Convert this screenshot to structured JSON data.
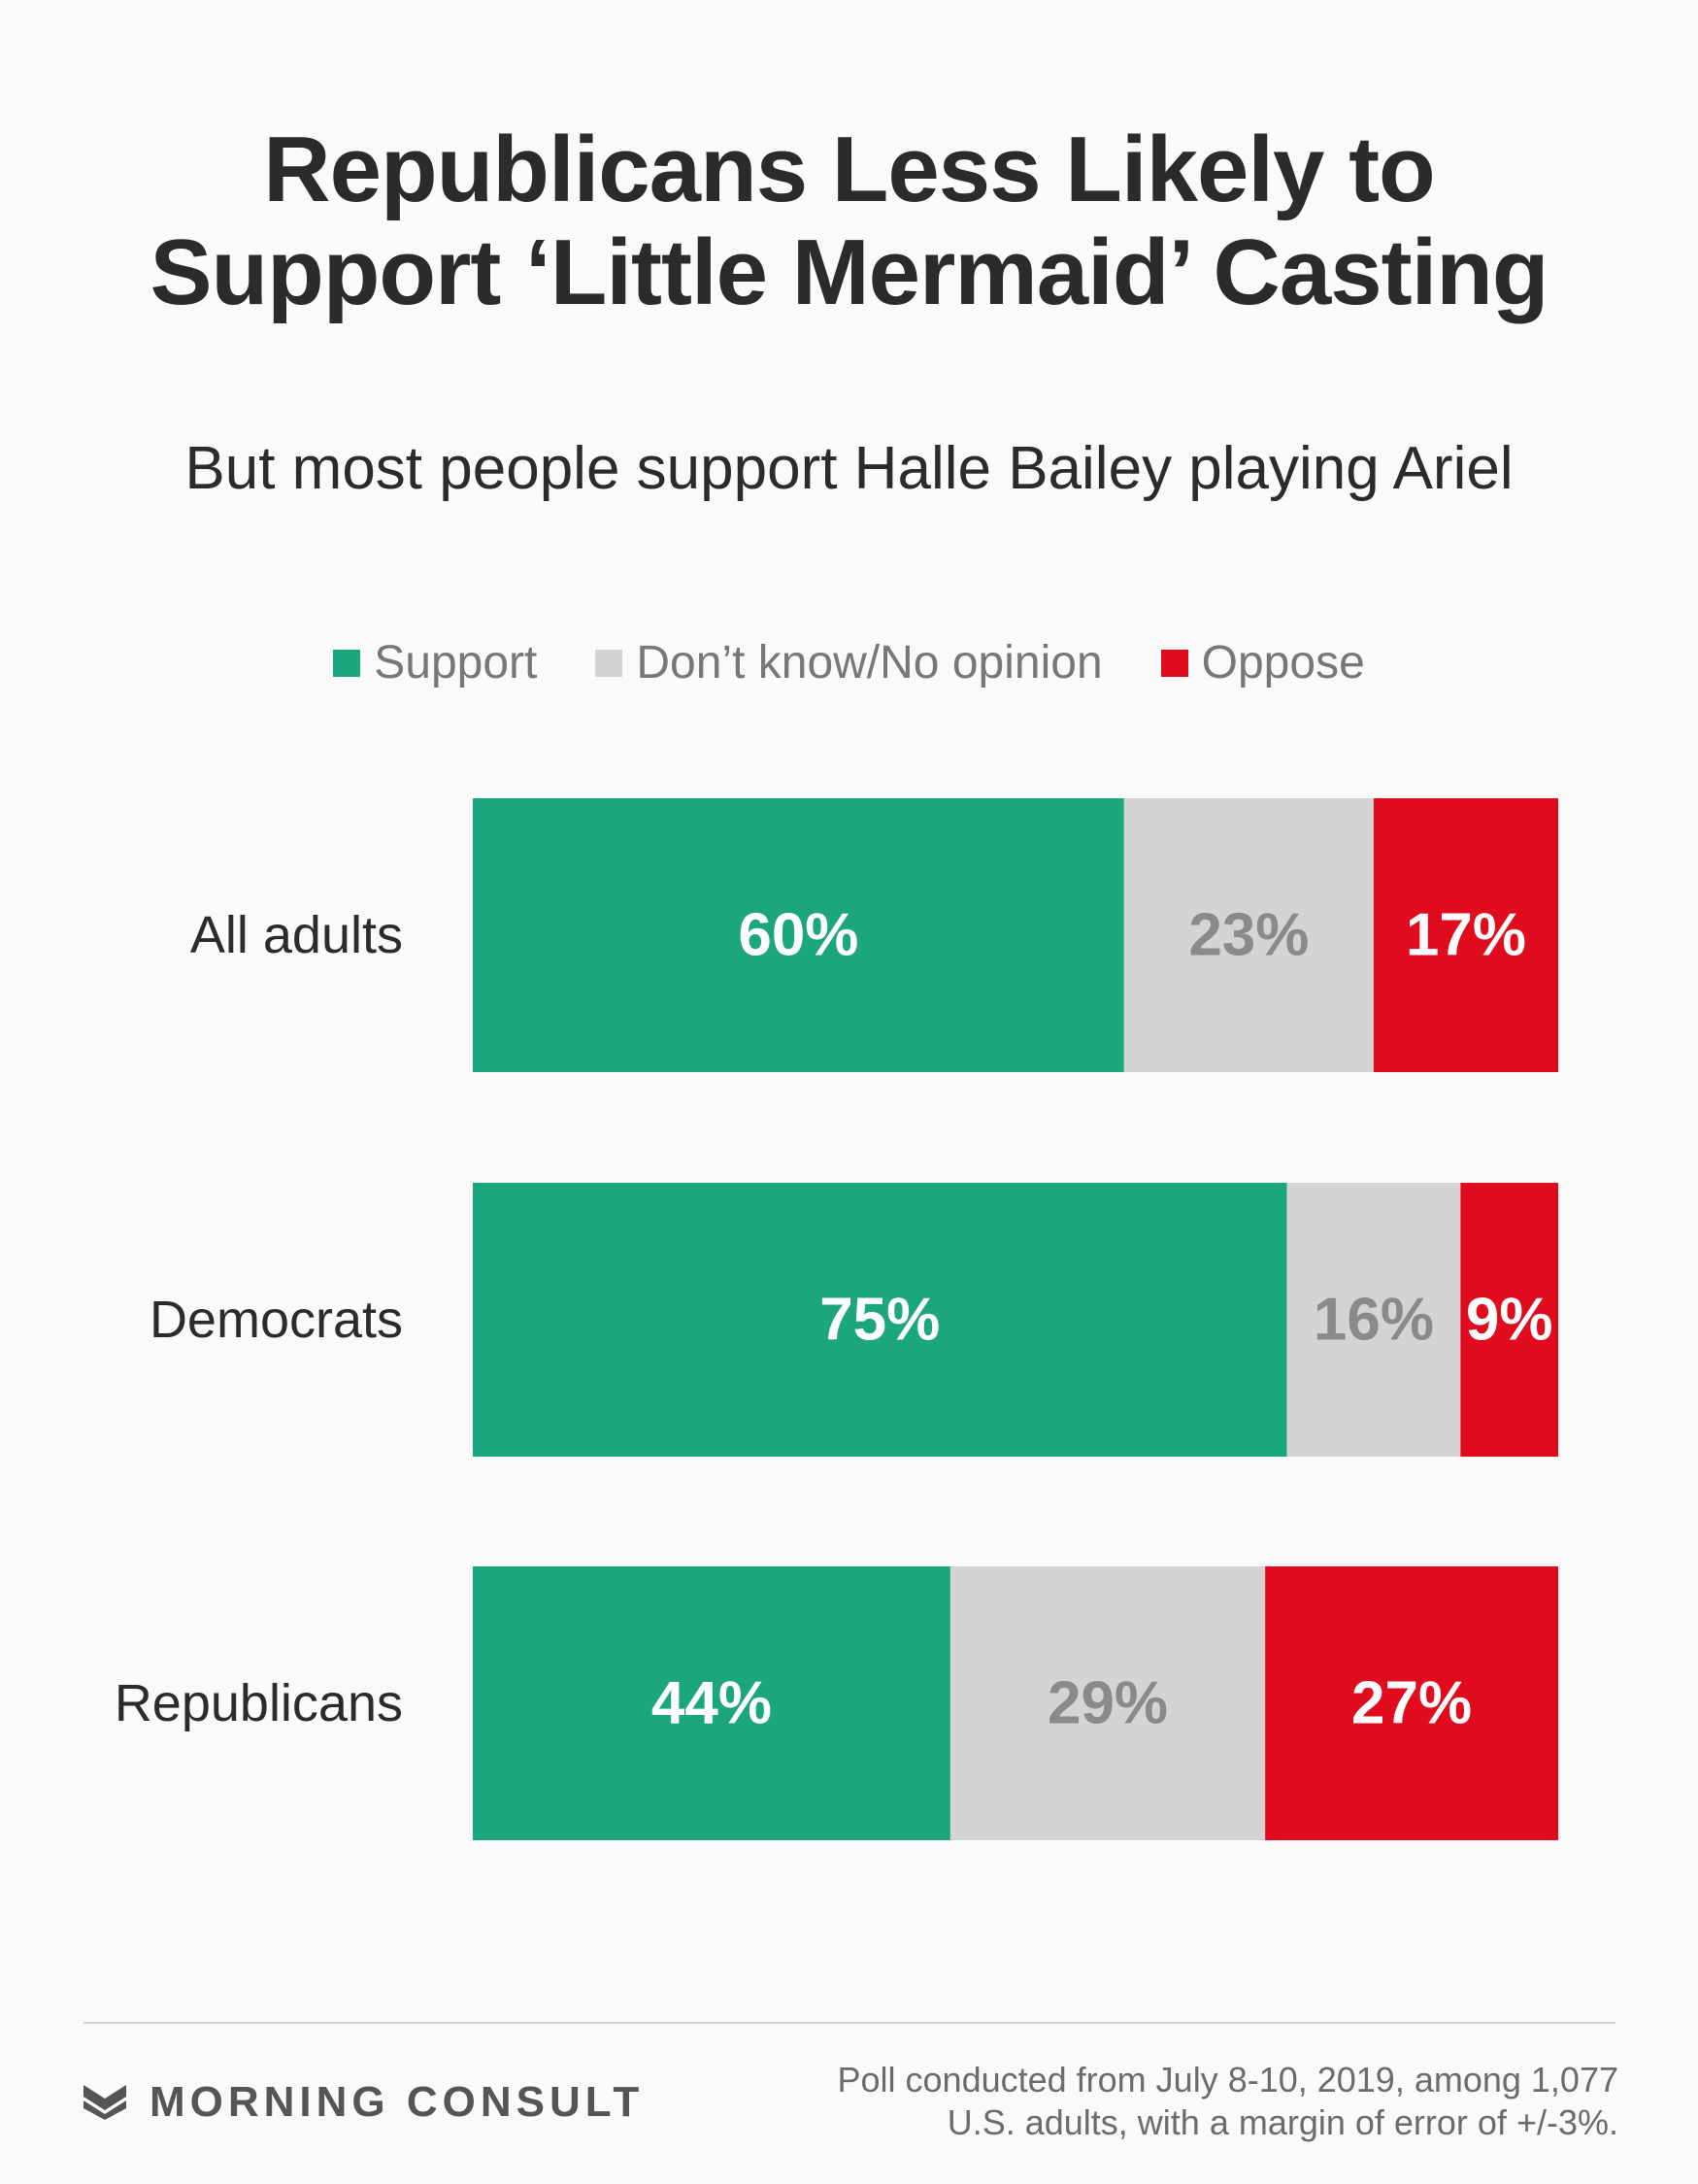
{
  "chart_data": {
    "type": "bar",
    "orientation": "horizontal",
    "stacked": true,
    "title": "Republicans Less Likely to Support ‘Little Mermaid’ Casting",
    "subtitle": "But most people support Halle Bailey playing Ariel",
    "categories": [
      "All adults",
      "Democrats",
      "Republicans"
    ],
    "series": [
      {
        "name": "Support",
        "values": [
          60,
          75,
          44
        ],
        "labels": [
          "60%",
          "75%",
          "44%"
        ],
        "color": "#1ca67d",
        "label_color": "#ffffff"
      },
      {
        "name": "Don’t know/No opinion",
        "values": [
          23,
          16,
          29
        ],
        "labels": [
          "23%",
          "16%",
          "29%"
        ],
        "color": "#d4d4d4",
        "label_color": "#8a8a8a"
      },
      {
        "name": "Oppose",
        "values": [
          17,
          9,
          27
        ],
        "labels": [
          "17%",
          "9%",
          "27%"
        ],
        "color": "#e00b1d",
        "label_color": "#ffffff"
      }
    ],
    "xlim": [
      0,
      100
    ],
    "legend_position": "top",
    "grid": false
  },
  "footer": {
    "brand": "MORNING CONSULT",
    "brand_icon": "morning-consult-logo-icon",
    "note_line1": "Poll conducted from July 8-10, 2019, among 1,077",
    "note_line2": "U.S. adults, with a margin of error of +/-3%."
  }
}
